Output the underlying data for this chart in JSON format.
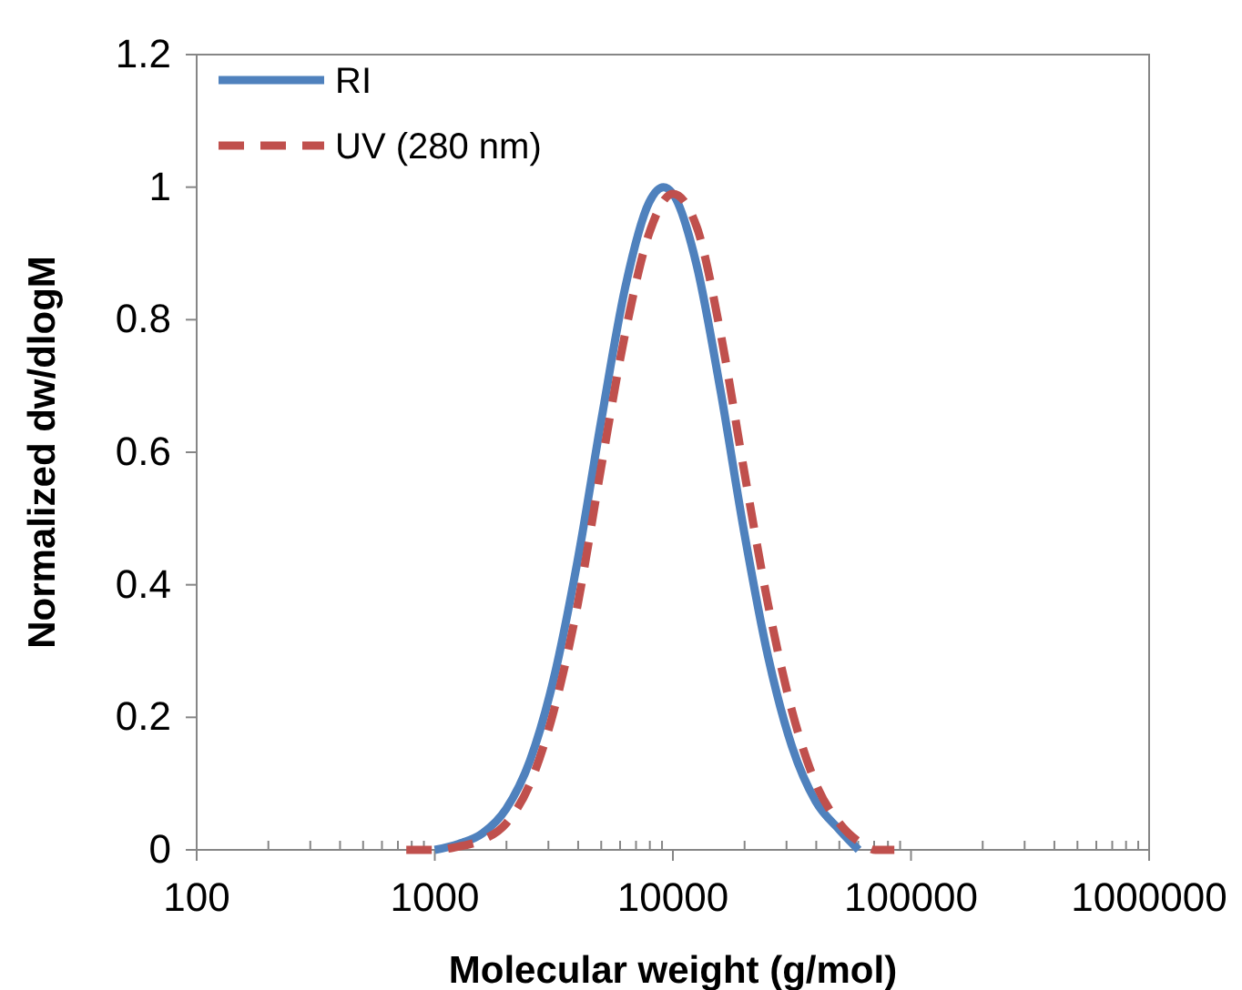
{
  "chart_data": {
    "type": "line",
    "xlabel": "Molecular weight (g/mol)",
    "ylabel": "Normalized dw/dlogM",
    "log": "x",
    "xlim": [
      100,
      1000000
    ],
    "ylim": [
      0,
      1.2
    ],
    "xticks": [
      100,
      {
        "value": 200,
        "label": null
      },
      {
        "value": 300,
        "label": null
      },
      {
        "value": 400,
        "label": null
      },
      {
        "value": 500,
        "label": null
      },
      {
        "value": 600,
        "label": null
      },
      {
        "value": 700,
        "label": null
      },
      {
        "value": 800,
        "label": null
      },
      {
        "value": 900,
        "label": null
      },
      1000,
      {
        "value": 2000,
        "label": null
      },
      {
        "value": 3000,
        "label": null
      },
      {
        "value": 4000,
        "label": null
      },
      {
        "value": 5000,
        "label": null
      },
      {
        "value": 6000,
        "label": null
      },
      {
        "value": 7000,
        "label": null
      },
      {
        "value": 8000,
        "label": null
      },
      {
        "value": 9000,
        "label": null
      },
      10000,
      {
        "value": 20000,
        "label": null
      },
      {
        "value": 30000,
        "label": null
      },
      {
        "value": 40000,
        "label": null
      },
      {
        "value": 50000,
        "label": null
      },
      {
        "value": 60000,
        "label": null
      },
      {
        "value": 70000,
        "label": null
      },
      {
        "value": 80000,
        "label": null
      },
      {
        "value": 90000,
        "label": null
      },
      100000,
      {
        "value": 200000,
        "label": null
      },
      {
        "value": 300000,
        "label": null
      },
      {
        "value": 400000,
        "label": null
      },
      {
        "value": 500000,
        "label": null
      },
      {
        "value": 600000,
        "label": null
      },
      {
        "value": 700000,
        "label": null
      },
      {
        "value": 800000,
        "label": null
      },
      {
        "value": 900000,
        "label": null
      },
      1000000
    ],
    "yticks": [
      0,
      0.2,
      0.4,
      0.6,
      0.8,
      1,
      1.2
    ],
    "grid": false,
    "legend": "top left",
    "marker": "none",
    "series": [
      {
        "name": "RI",
        "color": "#4f81bd",
        "line_style": "solid",
        "x": [
          1000,
          1259,
          1585,
          1995,
          2512,
          3162,
          3981,
          5012,
          6310,
          7943,
          9120,
          10000,
          12589,
          15849,
          19953,
          25119,
          31623,
          39811,
          50119,
          60256
        ],
        "values": [
          0,
          0.009,
          0.025,
          0.062,
          0.135,
          0.259,
          0.437,
          0.65,
          0.849,
          0.977,
          1,
          0.99,
          0.882,
          0.693,
          0.478,
          0.291,
          0.156,
          0.073,
          0.03,
          0
        ]
      },
      {
        "name": "UV (280 nm)",
        "color": "#c0504d",
        "line_style": "dashed",
        "x": [
          759,
          1000,
          1259,
          1585,
          1995,
          2512,
          3162,
          3981,
          5012,
          6310,
          7943,
          10000,
          12589,
          15849,
          19953,
          25119,
          31623,
          39811,
          50119,
          63096,
          70795,
          85114
        ],
        "values": [
          0,
          0,
          0.005,
          0.015,
          0.04,
          0.1,
          0.21,
          0.37,
          0.58,
          0.78,
          0.93,
          0.99,
          0.94,
          0.78,
          0.57,
          0.37,
          0.21,
          0.1,
          0.04,
          0.008,
          0,
          0
        ]
      }
    ]
  }
}
